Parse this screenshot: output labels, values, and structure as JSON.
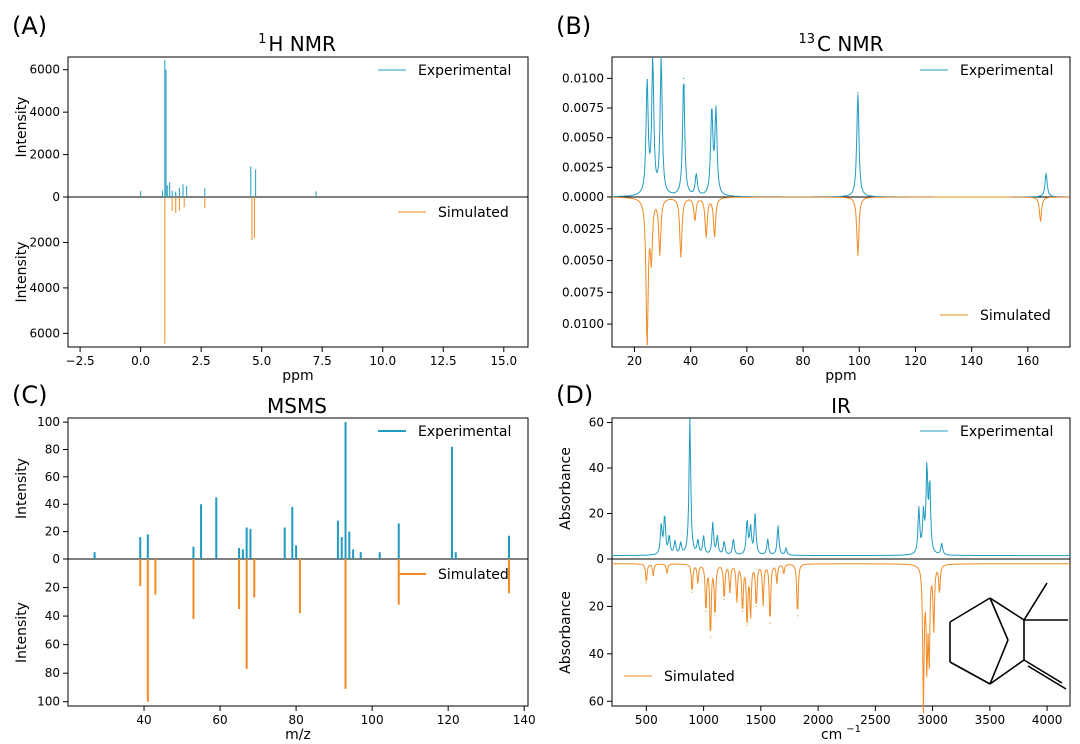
{
  "colors": {
    "experimental": "#1f9bc2",
    "simulated": "#f28a26",
    "axis": "#000000",
    "molecule": "#000000"
  },
  "chart_data": [
    {
      "panel_label": "(A)",
      "title_main": "H NMR",
      "title_sup": "1",
      "type": "line",
      "xlabel": "ppm",
      "ylabel_top": "Intensity",
      "ylabel_bottom": "Intensity",
      "xlim": [
        -3.0,
        16.0
      ],
      "ylim_top": [
        0,
        6600
      ],
      "ylim_bottom": [
        0,
        6600
      ],
      "xticks": [
        -2.5,
        0.0,
        2.5,
        5.0,
        7.5,
        10.0,
        12.5,
        15.0
      ],
      "xtick_labels": [
        "−2.5",
        "0.0",
        "2.5",
        "5.0",
        "7.5",
        "10.0",
        "12.5",
        "15.0"
      ],
      "yticks_top": [
        0,
        2000,
        4000,
        6000
      ],
      "ytick_labels_top": [
        "0",
        "2000",
        "4000",
        "6000"
      ],
      "yticks_bottom": [
        2000,
        4000,
        6000
      ],
      "ytick_labels_bottom": [
        "2000",
        "4000",
        "6000"
      ],
      "legend": {
        "experimental": "Experimental",
        "simulated": "Simulated"
      },
      "legend_pos": {
        "experimental": "top-right",
        "simulated": "bottom-right"
      },
      "series_style": "peaks",
      "experimental": [
        [
          0.0,
          280
        ],
        [
          0.9,
          300
        ],
        [
          1.0,
          6450
        ],
        [
          1.05,
          6000
        ],
        [
          1.1,
          550
        ],
        [
          1.2,
          700
        ],
        [
          1.3,
          300
        ],
        [
          1.45,
          260
        ],
        [
          1.6,
          420
        ],
        [
          1.75,
          600
        ],
        [
          1.9,
          520
        ],
        [
          2.65,
          420
        ],
        [
          4.55,
          1450
        ],
        [
          4.75,
          1300
        ],
        [
          7.25,
          270
        ]
      ],
      "simulated": [
        [
          1.0,
          6450
        ],
        [
          1.3,
          600
        ],
        [
          1.45,
          700
        ],
        [
          1.6,
          600
        ],
        [
          1.8,
          450
        ],
        [
          2.65,
          500
        ],
        [
          4.6,
          1900
        ],
        [
          4.7,
          1800
        ]
      ]
    },
    {
      "panel_label": "(B)",
      "title_main": "C NMR",
      "title_sup": "13",
      "type": "line",
      "xlabel": "ppm",
      "xlim": [
        12,
        175
      ],
      "ylim_top": [
        0,
        0.0118
      ],
      "ylim_bottom": [
        0,
        0.0118
      ],
      "xticks": [
        20,
        40,
        60,
        80,
        100,
        120,
        140,
        160
      ],
      "xtick_labels": [
        "20",
        "40",
        "60",
        "80",
        "100",
        "120",
        "140",
        "160"
      ],
      "yticks_top": [
        0.0,
        0.0025,
        0.005,
        0.0075,
        0.01
      ],
      "ytick_labels_top": [
        "0.0000",
        "0.0025",
        "0.0050",
        "0.0075",
        "0.0100"
      ],
      "yticks_bottom": [
        0.0025,
        0.005,
        0.0075,
        0.01
      ],
      "ytick_labels_bottom": [
        "0.0025",
        "0.0050",
        "0.0075",
        "0.0100"
      ],
      "legend": {
        "experimental": "Experimental",
        "simulated": "Simulated"
      },
      "legend_pos": {
        "experimental": "top-right",
        "simulated": "bottom-right"
      },
      "series_style": "lorentz",
      "experimental": [
        [
          24.5,
          0.0095
        ],
        [
          26.5,
          0.0112
        ],
        [
          29.5,
          0.0115
        ],
        [
          37.5,
          0.01
        ],
        [
          42,
          0.0018
        ],
        [
          47.5,
          0.0072
        ],
        [
          49,
          0.0071
        ],
        [
          99.5,
          0.0088
        ],
        [
          166.5,
          0.002
        ]
      ],
      "simulated": [
        [
          24.5,
          0.0115
        ],
        [
          26,
          0.0045
        ],
        [
          29,
          0.0044
        ],
        [
          36.5,
          0.0047
        ],
        [
          41.5,
          0.0018
        ],
        [
          45.5,
          0.0031
        ],
        [
          48.5,
          0.0031
        ],
        [
          99.5,
          0.0046
        ],
        [
          164.5,
          0.0019
        ]
      ]
    },
    {
      "panel_label": "(C)",
      "title_main": "MSMS",
      "title_sup": "",
      "type": "bar",
      "xlabel": "m/z",
      "ylabel_top": "Intensity",
      "ylabel_bottom": "Intensity",
      "xlim": [
        20,
        141
      ],
      "ylim_top": [
        0,
        103
      ],
      "ylim_bottom": [
        0,
        103
      ],
      "xticks": [
        40,
        60,
        80,
        100,
        120,
        140
      ],
      "xtick_labels": [
        "40",
        "60",
        "80",
        "100",
        "120",
        "140"
      ],
      "yticks_top": [
        0,
        20,
        40,
        60,
        80,
        100
      ],
      "ytick_labels_top": [
        "0",
        "20",
        "40",
        "60",
        "80",
        "100"
      ],
      "yticks_bottom": [
        20,
        40,
        60,
        80,
        100
      ],
      "ytick_labels_bottom": [
        "20",
        "40",
        "60",
        "80",
        "100"
      ],
      "legend": {
        "experimental": "Experimental",
        "simulated": "Simulated"
      },
      "legend_pos": {
        "experimental": "top-right",
        "simulated": "center-right"
      },
      "series_style": "sticks",
      "experimental": [
        [
          27,
          5
        ],
        [
          39,
          16
        ],
        [
          41,
          18
        ],
        [
          53,
          9
        ],
        [
          55,
          40
        ],
        [
          59,
          45
        ],
        [
          65,
          8
        ],
        [
          66,
          7
        ],
        [
          67,
          23
        ],
        [
          68,
          22
        ],
        [
          77,
          23
        ],
        [
          79,
          38
        ],
        [
          80,
          10
        ],
        [
          91,
          28
        ],
        [
          92,
          16
        ],
        [
          93,
          100
        ],
        [
          94,
          20
        ],
        [
          95,
          7
        ],
        [
          97,
          5
        ],
        [
          102,
          5
        ],
        [
          107,
          26
        ],
        [
          121,
          82
        ],
        [
          122,
          5
        ],
        [
          136,
          17
        ]
      ],
      "simulated": [
        [
          39,
          19
        ],
        [
          41,
          100
        ],
        [
          43,
          25
        ],
        [
          53,
          42
        ],
        [
          65,
          35
        ],
        [
          67,
          77
        ],
        [
          69,
          27
        ],
        [
          81,
          38
        ],
        [
          93,
          91
        ],
        [
          107,
          32
        ],
        [
          136,
          24
        ]
      ]
    },
    {
      "panel_label": "(D)",
      "title_main": "IR",
      "title_sup": "",
      "type": "line",
      "xlabel": "cm",
      "xlabel_sup": "−1",
      "ylabel_top": "Absorbance",
      "ylabel_bottom": "Absorbance",
      "xlim": [
        200,
        4200
      ],
      "ylim_top": [
        0,
        62
      ],
      "ylim_bottom": [
        0,
        62
      ],
      "xticks": [
        500,
        1000,
        1500,
        2000,
        2500,
        3000,
        3500,
        4000
      ],
      "xtick_labels": [
        "500",
        "1000",
        "1500",
        "2000",
        "2500",
        "3000",
        "3500",
        "4000"
      ],
      "yticks_top": [
        0,
        20,
        40,
        60
      ],
      "ytick_labels_top": [
        "0",
        "20",
        "40",
        "60"
      ],
      "yticks_bottom": [
        20,
        40,
        60
      ],
      "ytick_labels_bottom": [
        "20",
        "40",
        "60"
      ],
      "legend": {
        "experimental": "Experimental",
        "simulated": "Simulated"
      },
      "legend_pos": {
        "experimental": "top-right",
        "simulated": "bottom-left"
      },
      "series_style": "ir",
      "experimental_baseline": 1.5,
      "experimental": [
        [
          630,
          13
        ],
        [
          660,
          17
        ],
        [
          700,
          8
        ],
        [
          750,
          6
        ],
        [
          800,
          5
        ],
        [
          880,
          60
        ],
        [
          950,
          6
        ],
        [
          1000,
          8
        ],
        [
          1080,
          14
        ],
        [
          1120,
          8
        ],
        [
          1180,
          6
        ],
        [
          1260,
          7
        ],
        [
          1380,
          15
        ],
        [
          1410,
          12
        ],
        [
          1450,
          18
        ],
        [
          1560,
          7
        ],
        [
          1650,
          13
        ],
        [
          1720,
          3
        ],
        [
          2880,
          20
        ],
        [
          2920,
          17
        ],
        [
          2950,
          37
        ],
        [
          2975,
          30
        ],
        [
          3080,
          5
        ]
      ],
      "simulated_baseline": 2.0,
      "simulated": [
        [
          500,
          8
        ],
        [
          560,
          5
        ],
        [
          680,
          4
        ],
        [
          900,
          12
        ],
        [
          950,
          8
        ],
        [
          1020,
          20
        ],
        [
          1060,
          31
        ],
        [
          1100,
          22
        ],
        [
          1180,
          15
        ],
        [
          1230,
          12
        ],
        [
          1290,
          16
        ],
        [
          1340,
          20
        ],
        [
          1380,
          26
        ],
        [
          1410,
          22
        ],
        [
          1460,
          18
        ],
        [
          1520,
          17
        ],
        [
          1580,
          25
        ],
        [
          1640,
          8
        ],
        [
          1700,
          4
        ],
        [
          1820,
          22
        ],
        [
          2920,
          60
        ],
        [
          2950,
          42
        ],
        [
          2970,
          40
        ],
        [
          3010,
          28
        ],
        [
          3060,
          12
        ]
      ]
    }
  ]
}
